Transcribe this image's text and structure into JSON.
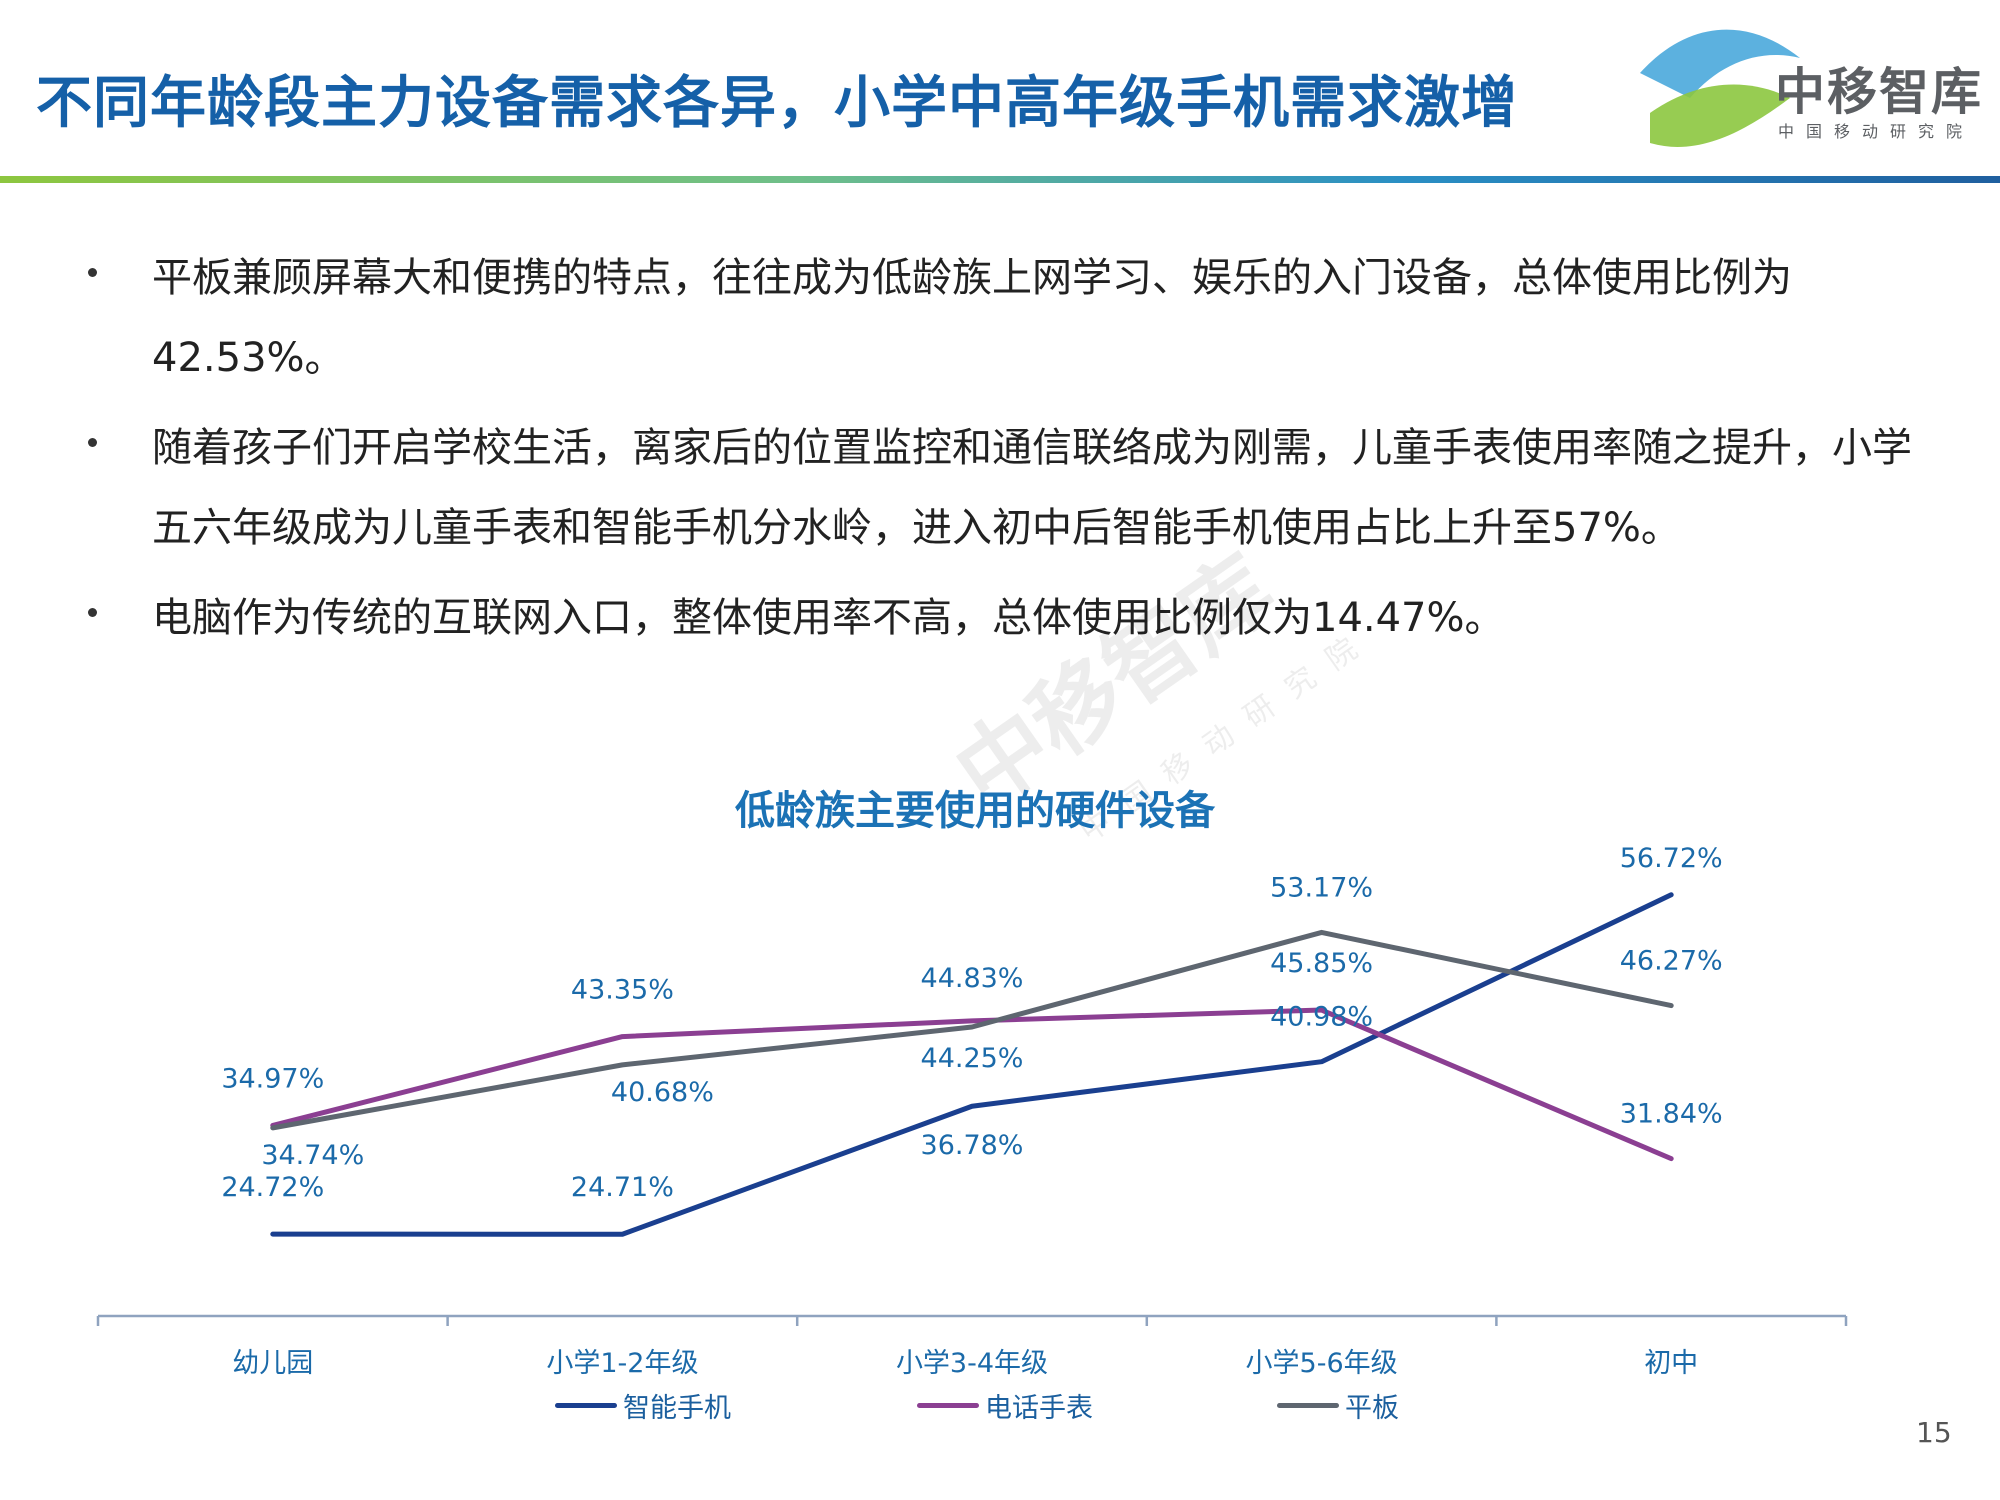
{
  "header": {
    "title": "不同年龄段主力设备需求各异，小学中高年级手机需求激增",
    "logo_name": "中移智库",
    "logo_sub": "中国移动研究院"
  },
  "bullets": [
    "平板兼顾屏幕大和便携的特点，往往成为低龄族上网学习、娱乐的入门设备，总体使用比例为42.53%。",
    "随着孩子们开启学校生活，离家后的位置监控和通信联络成为刚需，儿童手表使用率随之提升，小学五六年级成为儿童手表和智能手机分水岭，进入初中后智能手机使用占比上升至57%。",
    "电脑作为传统的互联网入口，整体使用率不高，总体使用比例仅为14.47%。"
  ],
  "watermark": {
    "text": "中移智库",
    "sub": "中国移动研究院"
  },
  "page_number": "15",
  "chart_data": {
    "type": "line",
    "title": "低龄族主要使用的硬件设备",
    "categories": [
      "幼儿园",
      "小学1-2年级",
      "小学3-4年级",
      "小学5-6年级",
      "初中"
    ],
    "series": [
      {
        "name": "智能手机",
        "color": "#1a3f8f",
        "values": [
          24.72,
          24.71,
          36.78,
          40.98,
          56.72
        ],
        "labels": [
          "24.72%",
          "24.71%",
          "36.78%",
          "40.98%",
          "56.72%"
        ]
      },
      {
        "name": "电话手表",
        "color": "#8b3f92",
        "values": [
          34.97,
          43.35,
          44.83,
          45.85,
          31.84
        ],
        "labels": [
          "34.97%",
          "43.35%",
          "44.83%",
          "45.85%",
          "31.84%"
        ]
      },
      {
        "name": "平板",
        "color": "#5e6670",
        "values": [
          34.74,
          40.68,
          44.25,
          53.17,
          46.27
        ],
        "labels": [
          "34.74%",
          "40.68%",
          "44.25%",
          "53.17%",
          "46.27%"
        ]
      }
    ],
    "ylim": [
      17,
      60
    ],
    "grid": false,
    "legend": "bottom",
    "label_color": "#1b6aa9",
    "axis_color": "#8fa3bf"
  }
}
